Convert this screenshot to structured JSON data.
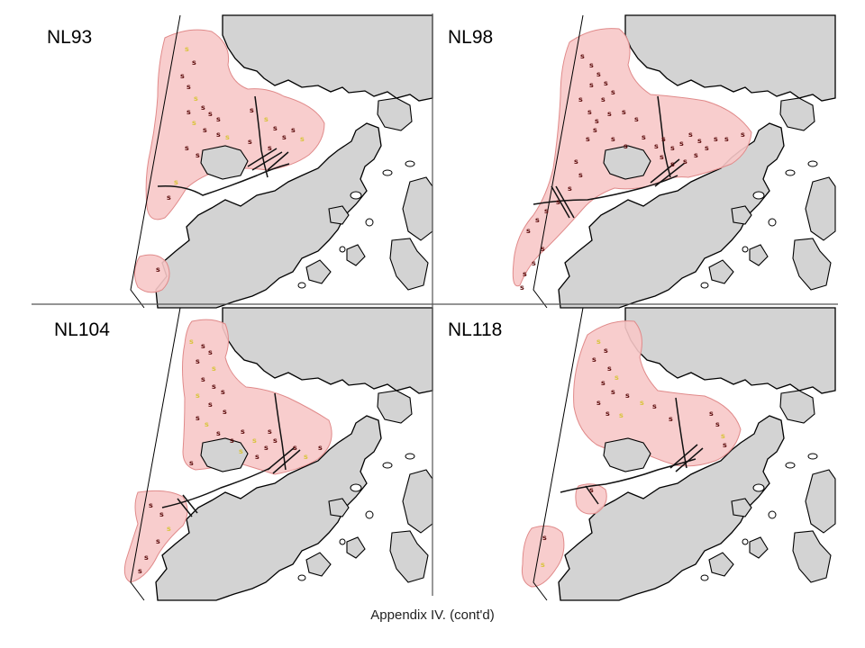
{
  "caption": "Appendix IV.  (cont'd)",
  "site_marker": "s",
  "colors": {
    "range_fill": "#f7c8c8",
    "range_stroke": "#e08a8a",
    "land": "#d3d3d3",
    "coast": "#000000",
    "site_dark": "#5a0a0a",
    "site_light": "#d8c43a"
  },
  "panels": [
    {
      "label": "NL93"
    },
    {
      "label": "NL98"
    },
    {
      "label": "NL104"
    },
    {
      "label": "NL118"
    }
  ]
}
